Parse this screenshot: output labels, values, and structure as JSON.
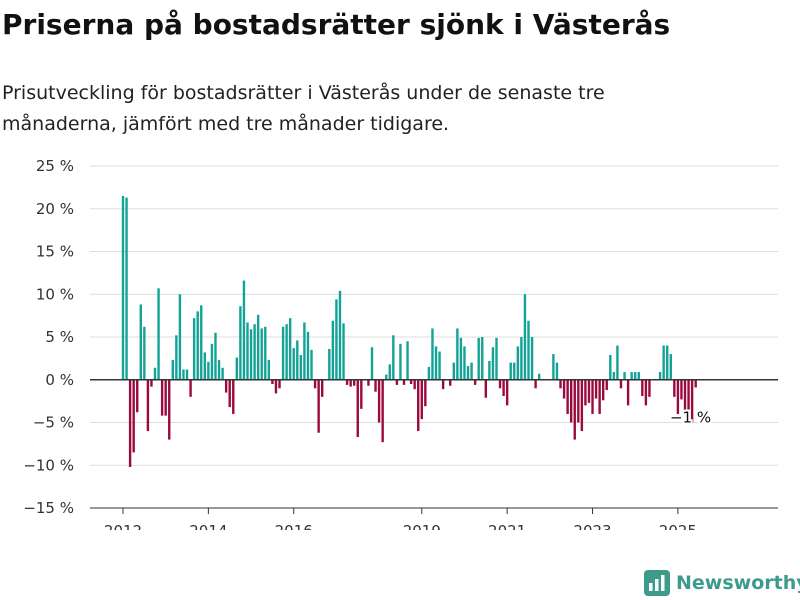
{
  "title": "Priserna på bostadsrätter sjönk i Västerås",
  "subtitle": "Prisutveckling för bostadsrätter i Västerås under de senaste tre månaderna, jämfört med tre månader tidigare.",
  "brand": {
    "name": "Newsworthy",
    "icon": "newsworthy-logo-icon",
    "color": "#3d9b8c"
  },
  "colors": {
    "positive": "#13a396",
    "negative": "#9b0a3e",
    "grid": "#dddddd",
    "axis": "#333333"
  },
  "chart_data": {
    "type": "bar",
    "ylim": [
      -15,
      25
    ],
    "y_ticks": [
      -15,
      -10,
      -5,
      0,
      5,
      10,
      15,
      20,
      25
    ],
    "y_tick_labels": [
      "−15 %",
      "−10 %",
      "−5 %",
      "0 %",
      "5 %",
      "10 %",
      "15 %",
      "20 %",
      "25 %"
    ],
    "x_ticks": [
      "2012-01",
      "2014-01",
      "2016-01",
      "2019-01",
      "2021-01",
      "2023-01",
      "2025-01"
    ],
    "x_tick_labels": [
      "2012",
      "2014",
      "2016",
      "2019",
      "2021",
      "2023",
      "2025"
    ],
    "grid": true,
    "annotation": {
      "x": "2025-04",
      "y": -1,
      "text": "−1 %"
    },
    "series": [
      {
        "x": [
          "2012-01",
          "2012-02",
          "2012-03",
          "2012-04",
          "2012-05",
          "2012-06",
          "2012-07",
          "2012-08",
          "2012-09",
          "2012-10",
          "2012-11",
          "2012-12",
          "2013-01",
          "2013-02",
          "2013-03",
          "2013-04",
          "2013-05",
          "2013-06",
          "2013-07",
          "2013-08",
          "2013-09",
          "2013-10",
          "2013-11",
          "2013-12",
          "2014-01",
          "2014-02",
          "2014-03",
          "2014-04",
          "2014-05",
          "2014-06",
          "2014-07",
          "2014-08",
          "2014-09",
          "2014-10",
          "2014-11",
          "2014-12",
          "2015-01",
          "2015-02",
          "2015-03",
          "2015-04",
          "2015-05",
          "2015-06",
          "2015-07",
          "2015-08",
          "2015-09",
          "2015-10",
          "2015-11",
          "2015-12",
          "2016-01",
          "2016-02",
          "2016-03",
          "2016-04",
          "2016-05",
          "2016-06",
          "2016-07",
          "2016-08",
          "2016-09",
          "2016-10",
          "2016-11",
          "2016-12",
          "2017-01",
          "2017-02",
          "2017-03",
          "2017-04",
          "2017-05",
          "2017-06",
          "2017-07",
          "2017-08",
          "2017-09",
          "2017-10",
          "2017-11",
          "2017-12",
          "2018-01",
          "2018-02",
          "2018-03",
          "2018-04",
          "2018-05",
          "2018-06",
          "2018-07",
          "2018-08",
          "2018-09",
          "2018-10",
          "2018-11",
          "2018-12",
          "2019-01",
          "2019-02",
          "2019-03",
          "2019-04",
          "2019-05",
          "2019-06",
          "2019-07",
          "2019-08",
          "2019-09",
          "2019-10",
          "2019-11",
          "2019-12",
          "2020-01",
          "2020-02",
          "2020-03",
          "2020-04",
          "2020-05",
          "2020-06",
          "2020-07",
          "2020-08",
          "2020-09",
          "2020-10",
          "2020-11",
          "2020-12",
          "2021-01",
          "2021-02",
          "2021-03",
          "2021-04",
          "2021-05",
          "2021-06",
          "2021-07",
          "2021-08",
          "2021-09",
          "2021-10",
          "2021-11",
          "2021-12",
          "2022-01",
          "2022-02",
          "2022-03",
          "2022-04",
          "2022-05",
          "2022-06",
          "2022-07",
          "2022-08",
          "2022-09",
          "2022-10",
          "2022-11",
          "2022-12",
          "2023-01",
          "2023-02",
          "2023-03",
          "2023-04",
          "2023-05",
          "2023-06",
          "2023-07",
          "2023-08",
          "2023-09",
          "2023-10",
          "2023-11",
          "2023-12",
          "2024-01",
          "2024-02",
          "2024-03",
          "2024-04",
          "2024-05",
          "2024-06",
          "2024-07",
          "2024-08",
          "2024-09",
          "2024-10",
          "2024-11",
          "2024-12",
          "2025-01",
          "2025-02",
          "2025-03",
          "2025-04",
          "2025-05",
          "2025-06"
        ],
        "values": [
          21.5,
          21.3,
          -10.2,
          -8.5,
          -3.8,
          8.8,
          6.2,
          -6,
          -0.8,
          1.4,
          10.7,
          -4.2,
          -4.2,
          -7,
          2.3,
          5.2,
          10,
          1.2,
          1.2,
          -2,
          7.2,
          8,
          8.7,
          3.2,
          2.1,
          4.2,
          5.5,
          2.3,
          1.4,
          -1.5,
          -3.2,
          -4,
          2.6,
          8.6,
          11.6,
          6.7,
          5.9,
          6.5,
          7.6,
          6,
          6.2,
          2.3,
          -0.5,
          -1.6,
          -1,
          6.2,
          6.5,
          7.2,
          3.7,
          4.6,
          2.9,
          6.7,
          5.6,
          3.5,
          -1,
          -6.2,
          -2,
          0,
          3.6,
          6.9,
          9.4,
          10.4,
          6.6,
          -0.6,
          -0.8,
          -0.7,
          -6.7,
          -3.4,
          0,
          -0.7,
          3.8,
          -1.4,
          -5,
          -7.3,
          0.6,
          1.8,
          5.2,
          -0.6,
          4.2,
          -0.6,
          4.5,
          -0.5,
          -1.1,
          -6,
          -4.6,
          -3.1,
          1.5,
          6,
          3.9,
          3.3,
          -1.1,
          0,
          -0.7,
          2,
          6,
          4.9,
          3.9,
          1.6,
          2,
          -0.6,
          4.9,
          5,
          -2.1,
          2.2,
          3.8,
          4.9,
          -1,
          -1.9,
          -3,
          2,
          2,
          3.9,
          5,
          10,
          6.9,
          5,
          -1,
          0.7,
          0,
          0,
          0,
          3,
          2,
          -1,
          -2.2,
          -4,
          -5,
          -7,
          -5,
          -6,
          -3,
          -2.7,
          -4,
          -2.2,
          -4,
          -2.4,
          -1.2,
          2.9,
          0.9,
          4,
          -1,
          0.9,
          -3,
          0.9,
          0.9,
          0.9,
          -1.9,
          -3,
          -2,
          0,
          0,
          0.9,
          4,
          4,
          3,
          -2,
          -4,
          -2.3,
          -3.5,
          -4.6,
          -5,
          -0.9
        ]
      }
    ]
  }
}
